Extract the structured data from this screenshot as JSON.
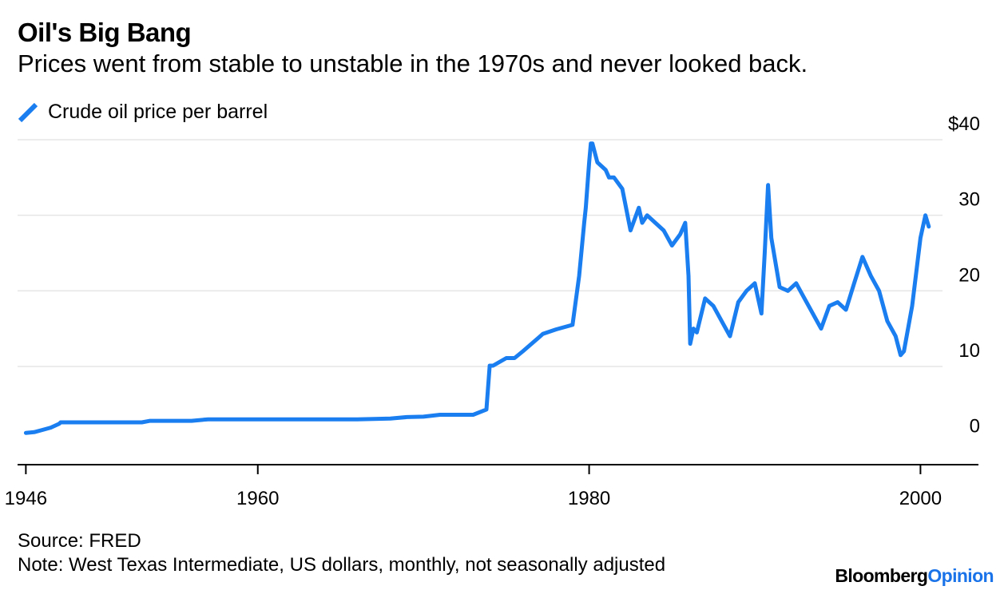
{
  "header": {
    "title": "Oil's Big Bang",
    "subtitle": "Prices went from stable to unstable in the 1970s and never looked back."
  },
  "legend": {
    "label": "Crude oil price per barrel"
  },
  "footer": {
    "source": "Source: FRED",
    "note": "Note: West Texas Intermediate, US dollars, monthly, not seasonally adjusted",
    "brand_part1": "Bloomberg",
    "brand_part2": "Opinion"
  },
  "colors": {
    "line": "#1a7ef0",
    "grid": "#e6e6e6",
    "axis": "#000000",
    "brand_accent": "#1a73e8"
  },
  "chart_data": {
    "type": "line",
    "title": "Oil's Big Bang",
    "subtitle": "Prices went from stable to unstable in the 1970s and never looked back.",
    "xlabel": "",
    "ylabel": "",
    "xlim": [
      1945.5,
      2003.5
    ],
    "ylim": [
      -3,
      40
    ],
    "grid": true,
    "legend_position": "top-left",
    "x_ticks": [
      {
        "value": 1946,
        "label": "1946"
      },
      {
        "value": 1960,
        "label": "1960"
      },
      {
        "value": 1980,
        "label": "1980"
      },
      {
        "value": 2000,
        "label": "2000"
      }
    ],
    "y_ticks": [
      {
        "value": 0,
        "label": "0"
      },
      {
        "value": 10,
        "label": "10"
      },
      {
        "value": 20,
        "label": "20"
      },
      {
        "value": 30,
        "label": "30"
      },
      {
        "value": 40,
        "label": "$40"
      }
    ],
    "series": [
      {
        "name": "Crude oil price per barrel",
        "color": "#1a7ef0",
        "x": [
          1946.0,
          1946.5,
          1947.0,
          1947.5,
          1948.0,
          1948.1,
          1949.0,
          1950.0,
          1951.0,
          1953.0,
          1953.5,
          1954.0,
          1956.0,
          1957.0,
          1958.0,
          1959.0,
          1960.0,
          1962.0,
          1964.0,
          1966.0,
          1968.0,
          1969.0,
          1970.0,
          1971.0,
          1972.0,
          1973.0,
          1973.8,
          1974.0,
          1974.2,
          1975.0,
          1975.5,
          1976.0,
          1977.0,
          1977.2,
          1978.0,
          1979.0,
          1979.4,
          1979.7,
          1979.8,
          1979.9,
          1980.0,
          1980.1,
          1980.2,
          1980.5,
          1981.0,
          1981.2,
          1981.5,
          1982.0,
          1982.5,
          1983.0,
          1983.2,
          1983.5,
          1984.0,
          1984.5,
          1985.0,
          1985.5,
          1985.8,
          1986.0,
          1986.1,
          1986.3,
          1986.5,
          1987.0,
          1987.5,
          1988.0,
          1988.5,
          1989.0,
          1989.5,
          1990.0,
          1990.4,
          1990.6,
          1990.8,
          1991.0,
          1991.5,
          1992.0,
          1992.5,
          1993.0,
          1993.5,
          1994.0,
          1994.5,
          1995.0,
          1995.5,
          1996.0,
          1996.5,
          1997.0,
          1997.5,
          1998.0,
          1998.5,
          1998.8,
          1999.0,
          1999.5,
          2000.0,
          2000.3,
          2000.5
        ],
        "values": [
          1.2,
          1.3,
          1.6,
          1.9,
          2.4,
          2.6,
          2.6,
          2.6,
          2.6,
          2.6,
          2.8,
          2.8,
          2.8,
          3.0,
          3.0,
          3.0,
          3.0,
          3.0,
          3.0,
          3.0,
          3.1,
          3.3,
          3.35,
          3.6,
          3.6,
          3.6,
          4.3,
          10.1,
          10.1,
          11.1,
          11.1,
          12.0,
          13.9,
          14.3,
          14.9,
          15.5,
          22.0,
          29.0,
          31.0,
          34.0,
          37.0,
          39.5,
          39.5,
          37.0,
          36.0,
          35.0,
          35.0,
          33.5,
          28.0,
          31.0,
          29.0,
          30.0,
          29.0,
          28.0,
          26.0,
          27.5,
          29.0,
          22.0,
          13.0,
          15.0,
          14.5,
          19.0,
          18.0,
          16.0,
          14.0,
          18.5,
          20.0,
          21.0,
          17.0,
          25.0,
          34.0,
          27.0,
          20.5,
          20.0,
          21.0,
          19.0,
          17.0,
          15.0,
          18.0,
          18.5,
          17.5,
          21.0,
          24.5,
          22.0,
          20.0,
          16.0,
          14.0,
          11.5,
          12.0,
          18.0,
          27.0,
          30.0,
          28.5
        ],
        "annotation_peak": {
          "x": 1980.2,
          "value": 39.5
        }
      }
    ]
  }
}
